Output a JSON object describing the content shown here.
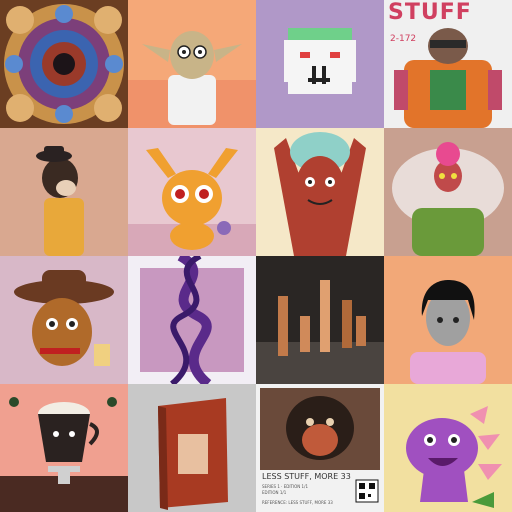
{
  "gallery": {
    "tiles": [
      {
        "id": "fractal-art",
        "text": []
      },
      {
        "id": "yoda-character",
        "text": []
      },
      {
        "id": "pixel-ghost",
        "text": []
      },
      {
        "id": "mech-pilot",
        "text": [
          "STUFF",
          "2-172"
        ]
      },
      {
        "id": "cowboy-cow",
        "text": []
      },
      {
        "id": "orange-bunny-monster",
        "text": []
      },
      {
        "id": "rain-face",
        "text": []
      },
      {
        "id": "muscle-alien",
        "text": []
      },
      {
        "id": "cowboy-nugget",
        "text": []
      },
      {
        "id": "dna-helix",
        "text": []
      },
      {
        "id": "copper-bars",
        "text": []
      },
      {
        "id": "black-hair-man",
        "text": []
      },
      {
        "id": "cup-character",
        "text": []
      },
      {
        "id": "red-book",
        "text": []
      },
      {
        "id": "pixel-monkey-poster",
        "text": [
          "LESS STUFF, MORE 33",
          "SERIES 1 · EDITION 1/1",
          "EDITION 1/1",
          "REFERENCE: LESS STUFF, MORE 33"
        ]
      },
      {
        "id": "purple-dino",
        "text": []
      }
    ]
  },
  "colors": {
    "tile_bgs": [
      "#7a4a2a",
      "#f5a878",
      "#b098c8",
      "#f0f0f0",
      "#d9a890",
      "#e8c8d0",
      "#f5e8c8",
      "#c8a090",
      "#d8b8c8",
      "#f2eef5",
      "#2a2624",
      "#f2a878",
      "#f0a090",
      "#c8c8c8",
      "#f2f2f2",
      "#f2e0a0"
    ]
  }
}
